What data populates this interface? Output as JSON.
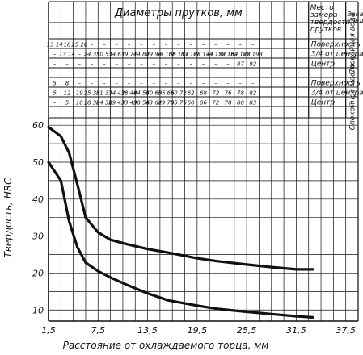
{
  "table": {
    "title": "Диаметры прутков, мм",
    "col_header_location": "Место замера твердости прутков",
    "col_header_medium": "Закаливающая среда",
    "medium_water": "Спокойная вода",
    "medium_oil": "Спокойное масло",
    "water_rows": [
      {
        "location": "Поверхность",
        "cells": [
          "13 14",
          "18",
          "25 26",
          "–",
          "–",
          "–",
          "–",
          "–",
          "–",
          "–",
          "–",
          "–",
          "–",
          "–",
          "–",
          "–",
          "–"
        ]
      },
      {
        "location": "3/4 от центра",
        "cells": [
          "–",
          "13 14",
          "–",
          "24 35",
          "30 51",
          "34 61",
          "39 71",
          "44 82",
          "49 94",
          "53 106",
          "58 117",
          "63 128",
          "68 144",
          "73 152",
          "78 164",
          "82 178",
          "87 193"
        ]
      },
      {
        "location": "Центр",
        "cells": [
          "–",
          "–",
          "–",
          "–",
          "–",
          "–",
          "–",
          "–",
          "–",
          "–",
          "–",
          "–",
          "–",
          "–",
          "–",
          "87",
          "92"
        ]
      }
    ],
    "oil_rows": [
      {
        "location": "Поверхность",
        "cells": [
          "5",
          "8",
          "–",
          "–",
          "–",
          "–",
          "–",
          "–",
          "–",
          "–",
          "–",
          "–",
          "–",
          "–",
          "–",
          "–",
          "–"
        ]
      },
      {
        "location": "3/4 от центра",
        "cells": [
          "5",
          "12",
          "19",
          "25 30",
          "31 37",
          "34 42",
          "38 48",
          "44 54",
          "50 60",
          "55 66",
          "60 72",
          "62",
          "68",
          "72",
          "76",
          "78",
          "82"
        ]
      },
      {
        "location": "Центр",
        "cells": [
          "–",
          "5",
          "10",
          "18 30",
          "24 38",
          "29 43",
          "33 49",
          "38 56",
          "43 62",
          "49 70",
          "55 76",
          "60",
          "66",
          "72",
          "78",
          "80",
          "83"
        ]
      }
    ]
  },
  "chart_data": {
    "type": "line",
    "xlabel": "Расстояние от охлаждаемого торца, мм",
    "ylabel": "Твердость, HRC",
    "xlim": [
      1.5,
      39
    ],
    "ylim": [
      7,
      62
    ],
    "x_ticks": [
      1.5,
      7.5,
      13.5,
      19.5,
      25.5,
      31.5,
      37.5
    ],
    "x_tick_labels": [
      "1,5",
      "7,5",
      "13,5",
      "19,5",
      "25,5",
      "31,5",
      "37,5"
    ],
    "y_ticks": [
      10,
      20,
      30,
      40,
      50,
      60
    ],
    "y_tick_labels": [
      "10",
      "20",
      "30",
      "40",
      "50",
      "60"
    ],
    "grid": true,
    "series": [
      {
        "x": [
          1.5,
          3,
          4,
          5,
          6,
          7.5,
          9,
          11,
          13.5,
          16,
          19.5,
          22,
          25.5,
          28.5,
          31.5,
          33.5
        ],
        "y": [
          59.5,
          57,
          52.5,
          44,
          35,
          31,
          29,
          27.8,
          26.5,
          25.5,
          24,
          23.2,
          22.3,
          21.6,
          21,
          21
        ]
      },
      {
        "x": [
          1.5,
          3,
          4,
          5,
          6,
          7.5,
          9,
          11,
          13.5,
          16,
          19.5,
          22,
          25.5,
          28.5,
          31.5,
          33.5
        ],
        "y": [
          50,
          45,
          34,
          27,
          22.8,
          20.5,
          18.8,
          16.8,
          14.5,
          12.6,
          11.2,
          10.3,
          9.5,
          8.9,
          8.3,
          8
        ]
      }
    ]
  },
  "colors": {
    "ink": "#111111",
    "background": "#ffffff"
  }
}
